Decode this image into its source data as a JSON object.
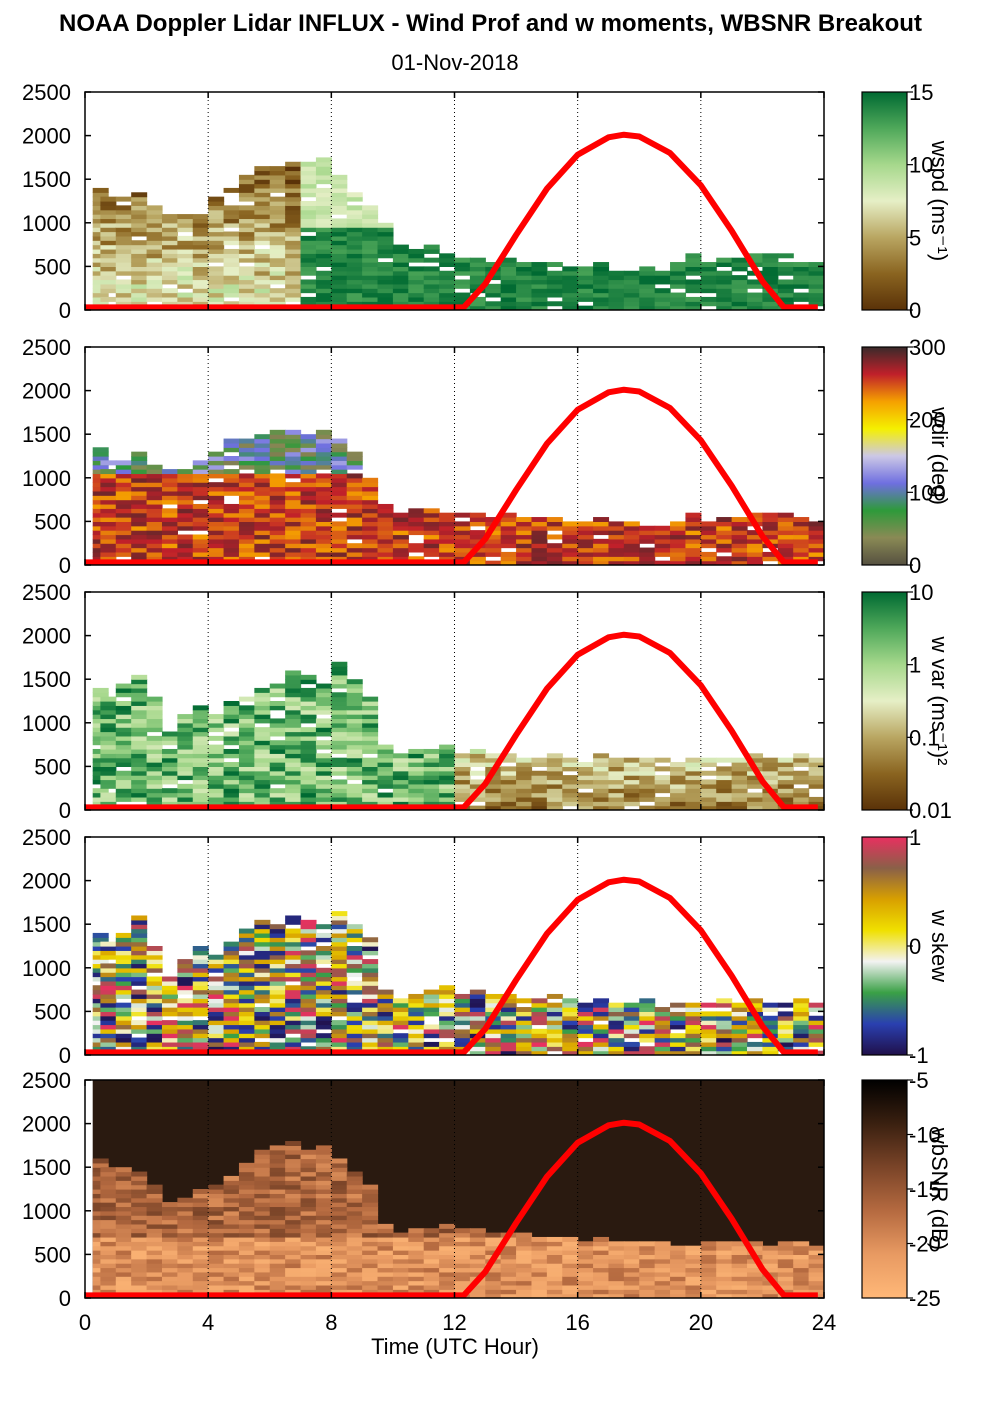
{
  "title": "NOAA Doppler Lidar INFLUX - Wind Prof and w moments, WBSNR Breakout",
  "date": "01-Nov-2018",
  "chart_data": {
    "type": "heatmap",
    "xlabel": "Time (UTC Hour)",
    "xlim": [
      0,
      24
    ],
    "xticks": [
      "0",
      "4",
      "8",
      "12",
      "16",
      "20",
      "24"
    ],
    "ylim": [
      0,
      2500
    ],
    "yticks": [
      "0",
      "500",
      "1000",
      "1500",
      "2000",
      "2500"
    ],
    "vertical_guides_at_hours": [
      4,
      8,
      12,
      16,
      20,
      24
    ],
    "overlay": {
      "name": "sun elevation curve",
      "color": "#ff0000",
      "points": [
        [
          0,
          30
        ],
        [
          12.3,
          30
        ],
        [
          13,
          300
        ],
        [
          14,
          860
        ],
        [
          15,
          1390
        ],
        [
          16,
          1780
        ],
        [
          17,
          1980
        ],
        [
          17.5,
          2010
        ],
        [
          18,
          1990
        ],
        [
          19,
          1800
        ],
        [
          20,
          1430
        ],
        [
          21,
          910
        ],
        [
          22,
          330
        ],
        [
          22.7,
          30
        ],
        [
          23.8,
          30
        ]
      ]
    },
    "panels": [
      {
        "label": "wspd (ms⁻¹)",
        "colorbar_ticks": [
          "15",
          "10",
          "5",
          "0"
        ],
        "colorbar_colors": [
          "#5a3208",
          "#8a6420",
          "#b9a662",
          "#e6efc6",
          "#a6d88c",
          "#4fa85a",
          "#006a32"
        ],
        "data_top_m": [
          1400,
          1300,
          1300,
          1350,
          1200,
          1100,
          1100,
          1150,
          1300,
          1400,
          1550,
          1650,
          1700,
          1700,
          1700,
          1750,
          1600,
          1350,
          1200,
          1000,
          750,
          700,
          750,
          650,
          700,
          600,
          550,
          600,
          550,
          550,
          550,
          500,
          500,
          550,
          500,
          500,
          500,
          450,
          550,
          650,
          550,
          600,
          600,
          650,
          650,
          650,
          600,
          550
        ]
      },
      {
        "label": "wdir (deg)",
        "colorbar_ticks": [
          "300",
          "200",
          "100",
          "0"
        ],
        "colorbar_colors": [
          "#3a2a2a",
          "#c0202a",
          "#f5a000",
          "#f5f000",
          "#ccc8e6",
          "#6f6fe0",
          "#2e9a3a",
          "#8a8a55",
          "#555040"
        ],
        "data_top_m": [
          1400,
          1200,
          1200,
          1300,
          1150,
          1100,
          1100,
          1200,
          1300,
          1450,
          1500,
          1500,
          1550,
          1550,
          1500,
          1550,
          1450,
          1300,
          1000,
          700,
          650,
          650,
          650,
          600,
          650,
          600,
          550,
          600,
          550,
          550,
          550,
          500,
          500,
          550,
          500,
          500,
          500,
          450,
          500,
          600,
          500,
          550,
          550,
          600,
          600,
          600,
          550,
          500
        ]
      },
      {
        "label": "w var (ms⁻¹)²",
        "colorbar_ticks": [
          "10",
          "1",
          "0.1",
          "0.01"
        ],
        "colorbar_colors": [
          "#5a3208",
          "#8a6420",
          "#b9a662",
          "#e6efc6",
          "#a6d88c",
          "#4fa85a",
          "#006a32"
        ],
        "data_top_m": [
          1400,
          1300,
          1450,
          1550,
          1300,
          900,
          1100,
          1200,
          1100,
          1250,
          1300,
          1400,
          1450,
          1600,
          1550,
          1450,
          1700,
          1500,
          1300,
          750,
          650,
          700,
          700,
          750,
          650,
          700,
          650,
          650,
          600,
          600,
          650,
          600,
          550,
          650,
          600,
          600,
          600,
          600,
          550,
          600,
          600,
          600,
          600,
          650,
          600,
          600,
          650,
          600
        ]
      },
      {
        "label": "w skew",
        "colorbar_ticks": [
          "1",
          "0",
          "-1"
        ],
        "colorbar_colors": [
          "#e83060",
          "#8a6048",
          "#d8a000",
          "#f0e000",
          "#f2f2f2",
          "#3aa046",
          "#2a40b0",
          "#20104a"
        ],
        "data_top_m": [
          1400,
          1300,
          1400,
          1600,
          1250,
          900,
          1100,
          1250,
          1150,
          1300,
          1450,
          1550,
          1500,
          1600,
          1550,
          1500,
          1650,
          1500,
          1350,
          750,
          650,
          700,
          750,
          800,
          700,
          750,
          700,
          700,
          650,
          650,
          700,
          650,
          600,
          650,
          600,
          600,
          650,
          600,
          600,
          600,
          600,
          650,
          600,
          650,
          600,
          600,
          650,
          600
        ]
      },
      {
        "label": "wbSNR (dB)",
        "colorbar_ticks": [
          "-5",
          "-10",
          "-15",
          "-20",
          "-25"
        ],
        "colorbar_colors": [
          "#ffb878",
          "#e89a62",
          "#b56a40",
          "#7a4428",
          "#3a2010",
          "#000000"
        ],
        "data_top_m": [
          1600,
          1500,
          1500,
          1450,
          1300,
          1100,
          1150,
          1250,
          1300,
          1400,
          1550,
          1700,
          1750,
          1800,
          1700,
          1750,
          1600,
          1450,
          1300,
          850,
          750,
          800,
          800,
          850,
          800,
          800,
          750,
          750,
          750,
          700,
          700,
          700,
          650,
          700,
          650,
          650,
          650,
          650,
          600,
          600,
          650,
          650,
          650,
          650,
          600,
          650,
          650,
          600
        ]
      }
    ]
  }
}
